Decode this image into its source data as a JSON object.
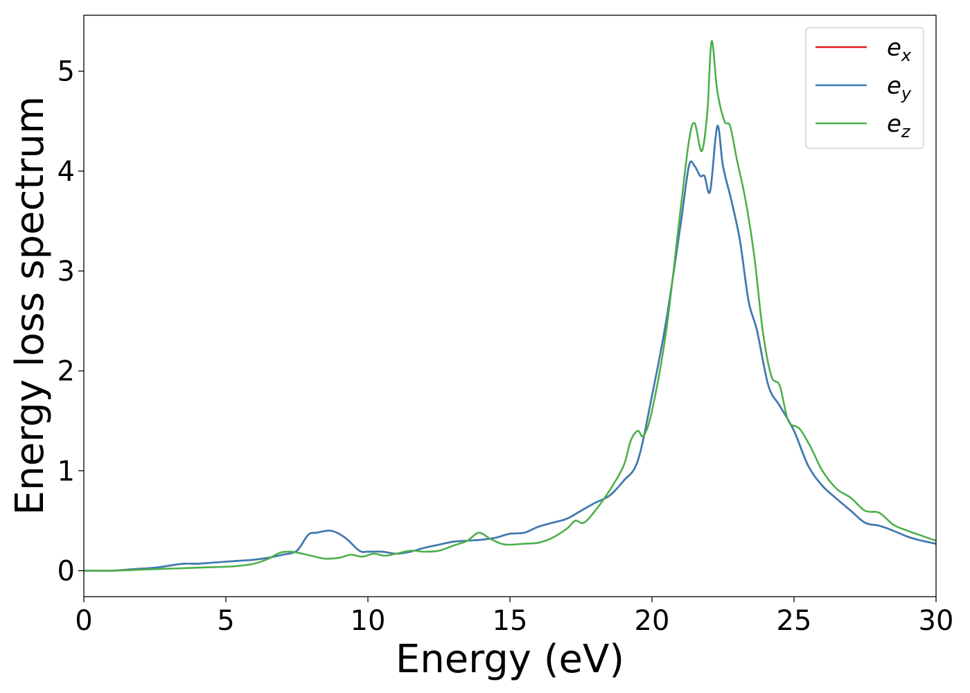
{
  "chart_data": {
    "type": "line",
    "title": "",
    "xlabel": "Energy (eV)",
    "ylabel": "Energy loss spectrum",
    "xlim": [
      0,
      30
    ],
    "ylim": [
      -0.26,
      5.56
    ],
    "xticks": [
      0,
      5,
      10,
      15,
      20,
      25,
      30
    ],
    "yticks": [
      0,
      1,
      2,
      3,
      4,
      5
    ],
    "grid": false,
    "legend_position": "top-right",
    "colors": {
      "e_x": "#e41a1c",
      "e_y": "#377eb8",
      "e_z": "#4daf4a"
    },
    "legend": [
      {
        "base": "e",
        "sub": "x"
      },
      {
        "base": "e",
        "sub": "y"
      },
      {
        "base": "e",
        "sub": "z"
      }
    ],
    "series": [
      {
        "key": "e_x",
        "x": [
          0,
          1,
          1.5,
          2,
          2.5,
          3,
          3.5,
          4,
          4.5,
          5,
          5.5,
          6,
          6.5,
          7,
          7.5,
          7.9,
          8.2,
          8.7,
          9.2,
          9.7,
          10,
          10.5,
          11,
          11.5,
          12,
          12.5,
          13,
          13.5,
          14,
          14.5,
          15,
          15.5,
          16,
          16.5,
          17,
          17.5,
          18,
          18.5,
          19,
          19.5,
          20,
          20.5,
          21,
          21.3,
          21.5,
          21.7,
          21.85,
          22.05,
          22.3,
          22.5,
          22.8,
          23.1,
          23.4,
          23.7,
          24.1,
          24.5,
          25,
          25.5,
          26,
          26.5,
          27,
          27.5,
          28,
          28.5,
          29,
          29.5,
          30
        ],
        "y": [
          0,
          0,
          0.01,
          0.02,
          0.03,
          0.05,
          0.07,
          0.07,
          0.08,
          0.09,
          0.1,
          0.11,
          0.13,
          0.16,
          0.2,
          0.36,
          0.38,
          0.4,
          0.33,
          0.2,
          0.19,
          0.19,
          0.17,
          0.19,
          0.23,
          0.26,
          0.29,
          0.3,
          0.31,
          0.33,
          0.37,
          0.38,
          0.44,
          0.48,
          0.52,
          0.6,
          0.68,
          0.75,
          0.9,
          1.1,
          1.75,
          2.5,
          3.45,
          4.05,
          4.05,
          3.95,
          3.95,
          3.8,
          4.45,
          4.05,
          3.7,
          3.3,
          2.7,
          2.4,
          1.85,
          1.65,
          1.4,
          1.05,
          0.85,
          0.72,
          0.6,
          0.48,
          0.45,
          0.4,
          0.34,
          0.3,
          0.27
        ]
      },
      {
        "key": "e_y",
        "x": [
          0,
          1,
          1.5,
          2,
          2.5,
          3,
          3.5,
          4,
          4.5,
          5,
          5.5,
          6,
          6.5,
          7,
          7.5,
          7.9,
          8.2,
          8.7,
          9.2,
          9.7,
          10,
          10.5,
          11,
          11.5,
          12,
          12.5,
          13,
          13.5,
          14,
          14.5,
          15,
          15.5,
          16,
          16.5,
          17,
          17.5,
          18,
          18.5,
          19,
          19.5,
          20,
          20.5,
          21,
          21.3,
          21.5,
          21.7,
          21.85,
          22.05,
          22.3,
          22.5,
          22.8,
          23.1,
          23.4,
          23.7,
          24.1,
          24.5,
          25,
          25.5,
          26,
          26.5,
          27,
          27.5,
          28,
          28.5,
          29,
          29.5,
          30
        ],
        "y": [
          0,
          0,
          0.01,
          0.02,
          0.03,
          0.05,
          0.07,
          0.07,
          0.08,
          0.09,
          0.1,
          0.11,
          0.13,
          0.16,
          0.2,
          0.36,
          0.38,
          0.4,
          0.33,
          0.2,
          0.19,
          0.19,
          0.17,
          0.19,
          0.23,
          0.26,
          0.29,
          0.3,
          0.31,
          0.33,
          0.37,
          0.38,
          0.44,
          0.48,
          0.52,
          0.6,
          0.68,
          0.75,
          0.9,
          1.1,
          1.75,
          2.5,
          3.45,
          4.05,
          4.05,
          3.95,
          3.95,
          3.8,
          4.45,
          4.05,
          3.7,
          3.3,
          2.7,
          2.4,
          1.85,
          1.65,
          1.4,
          1.05,
          0.85,
          0.72,
          0.6,
          0.48,
          0.45,
          0.4,
          0.34,
          0.3,
          0.27
        ]
      },
      {
        "key": "e_z",
        "x": [
          0,
          1,
          2,
          3,
          4,
          5,
          5.5,
          6,
          6.5,
          6.9,
          7.3,
          7.7,
          8,
          8.5,
          9,
          9.4,
          9.8,
          10.2,
          10.6,
          11,
          11.5,
          12,
          12.5,
          13,
          13.5,
          13.9,
          14.3,
          14.7,
          15,
          15.5,
          16,
          16.5,
          17,
          17.3,
          17.6,
          18,
          18.5,
          19,
          19.25,
          19.5,
          19.7,
          20,
          20.5,
          21,
          21.3,
          21.5,
          21.75,
          21.95,
          22.1,
          22.3,
          22.55,
          22.75,
          23,
          23.3,
          23.6,
          23.9,
          24.2,
          24.5,
          24.8,
          25.2,
          25.6,
          26,
          26.5,
          27,
          27.5,
          28,
          28.5,
          29,
          29.5,
          30
        ],
        "y": [
          0,
          0,
          0.01,
          0.02,
          0.03,
          0.04,
          0.05,
          0.07,
          0.12,
          0.18,
          0.19,
          0.17,
          0.15,
          0.12,
          0.13,
          0.16,
          0.14,
          0.17,
          0.15,
          0.17,
          0.2,
          0.19,
          0.2,
          0.25,
          0.3,
          0.38,
          0.32,
          0.27,
          0.26,
          0.27,
          0.28,
          0.33,
          0.42,
          0.5,
          0.48,
          0.6,
          0.8,
          1.05,
          1.3,
          1.4,
          1.35,
          1.6,
          2.4,
          3.6,
          4.3,
          4.48,
          4.2,
          4.6,
          5.3,
          4.8,
          4.5,
          4.45,
          4.1,
          3.7,
          3.15,
          2.4,
          1.95,
          1.85,
          1.5,
          1.42,
          1.23,
          1.0,
          0.82,
          0.73,
          0.6,
          0.58,
          0.46,
          0.4,
          0.35,
          0.3
        ]
      }
    ]
  }
}
